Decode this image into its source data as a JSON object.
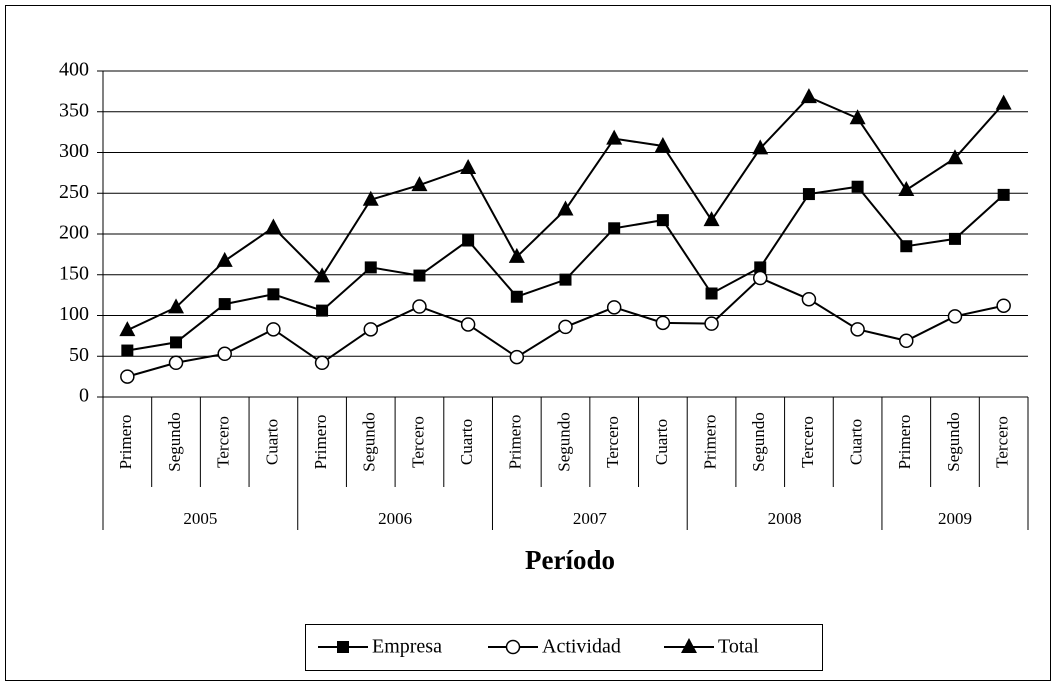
{
  "chart_data": {
    "type": "line",
    "x_label": "Período",
    "category_groups": [
      {
        "name": "2005",
        "categories": [
          "Primero",
          "Segundo",
          "Tercero",
          "Cuarto"
        ]
      },
      {
        "name": "2006",
        "categories": [
          "Primero",
          "Segundo",
          "Tercero",
          "Cuarto"
        ]
      },
      {
        "name": "2007",
        "categories": [
          "Primero",
          "Segundo",
          "Tercero",
          "Cuarto"
        ]
      },
      {
        "name": "2008",
        "categories": [
          "Primero",
          "Segundo",
          "Tercero",
          "Cuarto"
        ]
      },
      {
        "name": "2009",
        "categories": [
          "Primero",
          "Segundo",
          "Tercero"
        ]
      }
    ],
    "series": [
      {
        "name": "Empresa",
        "color": "#000000",
        "marker": "square",
        "values": [
          57,
          67,
          114,
          126,
          106,
          159,
          149,
          192,
          123,
          144,
          207,
          217,
          127,
          159,
          249,
          258,
          185,
          194,
          248
        ]
      },
      {
        "name": "Actividad",
        "color": "#000000",
        "marker": "circle",
        "values": [
          25,
          42,
          53,
          83,
          42,
          83,
          111,
          89,
          49,
          86,
          110,
          91,
          90,
          146,
          120,
          83,
          69,
          99,
          112
        ]
      },
      {
        "name": "Total",
        "color": "#000000",
        "marker": "triangle",
        "values": [
          82,
          110,
          167,
          208,
          148,
          242,
          260,
          281,
          172,
          230,
          317,
          308,
          217,
          305,
          368,
          342,
          254,
          293,
          360
        ]
      }
    ],
    "ylim": [
      0,
      400
    ],
    "yticks": [
      0,
      50,
      100,
      150,
      200,
      250,
      300,
      350,
      400
    ],
    "grid": true,
    "legend": "bottom"
  }
}
